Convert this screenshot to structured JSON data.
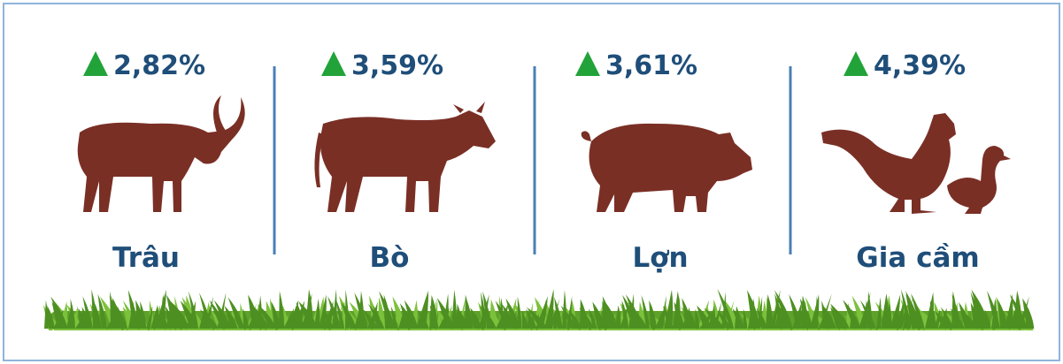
{
  "items": [
    {
      "change": "2,82%",
      "label": "Trâu"
    },
    {
      "change": "3,59%",
      "label": "Bò"
    },
    {
      "change": "3,61%",
      "label": "Lợn"
    },
    {
      "change": "4,39%",
      "label": "Gia cầm"
    }
  ]
}
